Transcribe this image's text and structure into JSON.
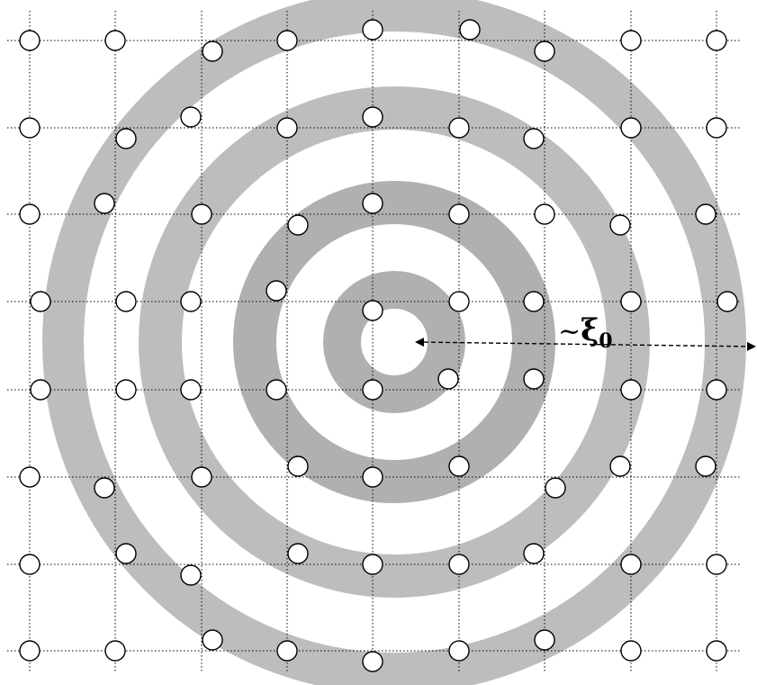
{
  "figure": {
    "annotation": {
      "prefix": "~",
      "symbol": "ξ",
      "subscript": "0"
    },
    "rings": {
      "count": 4,
      "color": "#bdbdbd"
    },
    "grid": {
      "columns": 9,
      "rows": 8,
      "line_style": "dotted"
    },
    "atoms": {
      "shape": "circle",
      "fill": "#ffffff",
      "stroke": "#000000"
    },
    "arrow": {
      "style": "dashed",
      "heads": "both"
    }
  }
}
